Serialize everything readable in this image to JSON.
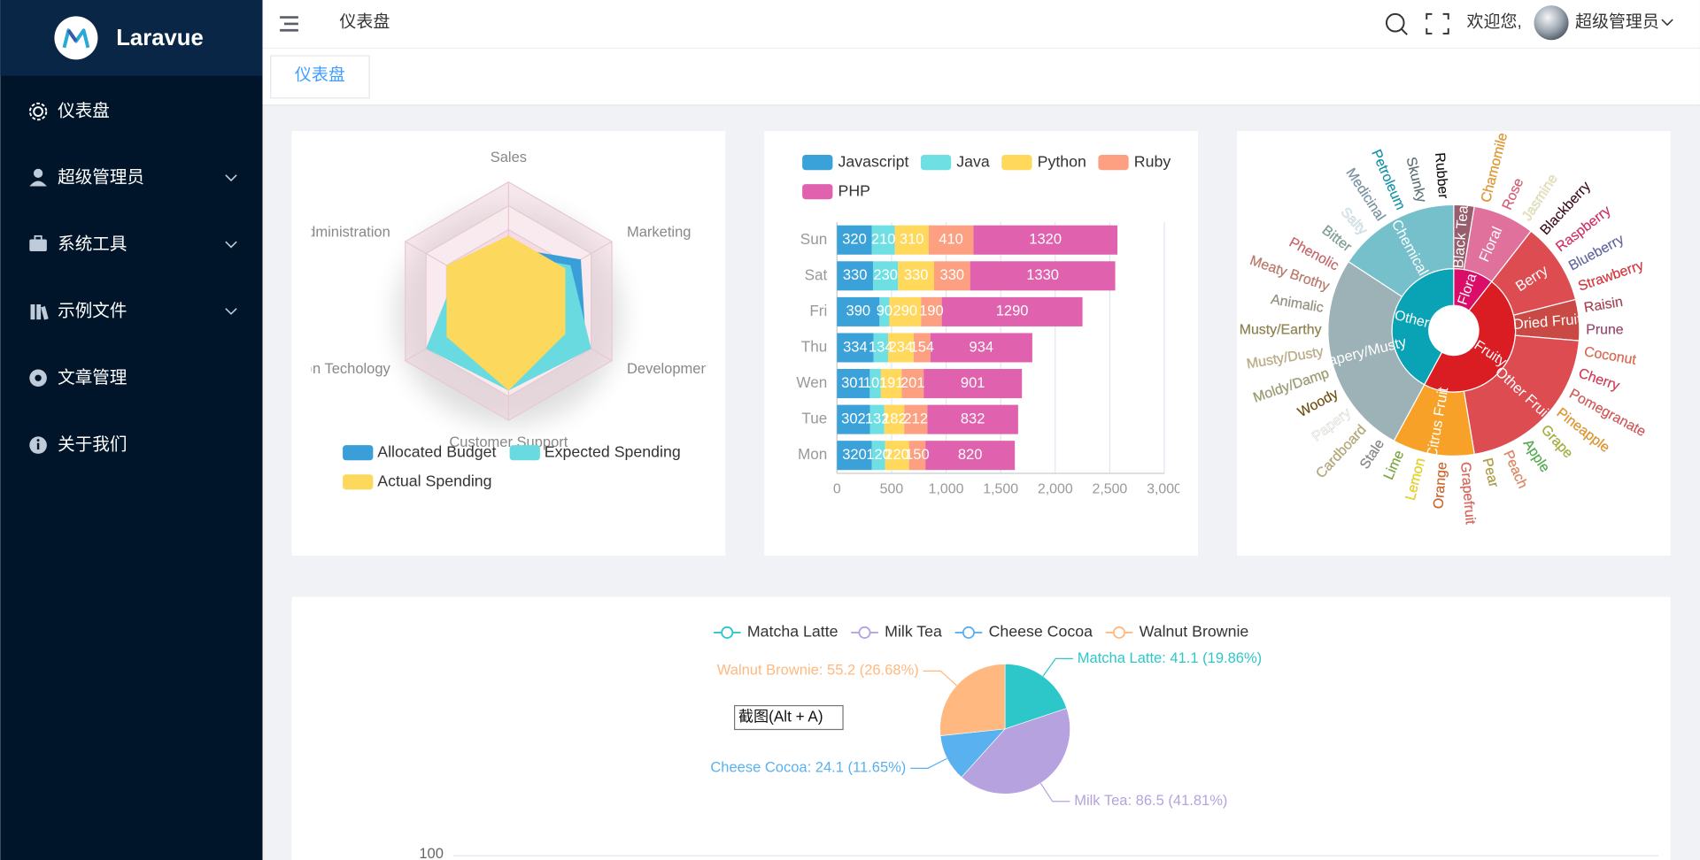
{
  "sidebar": {
    "logo": "Laravue",
    "menu": [
      {
        "label": "仪表盘"
      },
      {
        "label": "超级管理员",
        "submenu": true
      },
      {
        "label": "系统工具",
        "submenu": true
      },
      {
        "label": "示例文件",
        "submenu": true
      },
      {
        "label": "文章管理"
      },
      {
        "label": "关于我们"
      }
    ]
  },
  "header": {
    "breadcrumb": "仪表盘",
    "welcome": "欢迎您,",
    "user": "超级管理员"
  },
  "tabs": [
    "仪表盘"
  ],
  "tooltip": "截图(Alt + A)",
  "chart_data": [
    {
      "type": "radar",
      "indicators": [
        "Sales",
        "Administration",
        "Information Techology",
        "Customer Support",
        "Development",
        "Marketing"
      ],
      "rlim": [
        0,
        20000
      ],
      "series": [
        {
          "name": "Allocated Budget",
          "color": "#3a9fd8",
          "values": [
            9000,
            11000,
            12000,
            14000,
            15000,
            14000
          ]
        },
        {
          "name": "Expected Spending",
          "color": "#69dbe0",
          "values": [
            8000,
            10000,
            16000,
            15000,
            16000,
            12000
          ]
        },
        {
          "name": "Actual Spending",
          "color": "#fcd85c",
          "values": [
            11000,
            12000,
            12000,
            15000,
            11000,
            11000
          ]
        }
      ]
    },
    {
      "type": "bar",
      "orientation": "horizontal",
      "stacked": true,
      "categories": [
        "Mon",
        "Tue",
        "Wen",
        "Thu",
        "Fri",
        "Sat",
        "Sun"
      ],
      "series": [
        {
          "name": "Javascript",
          "color": "#3ba1d9",
          "values": [
            320,
            302,
            301,
            334,
            390,
            330,
            320
          ]
        },
        {
          "name": "Java",
          "color": "#6ee0e4",
          "values": [
            120,
            132,
            101,
            134,
            90,
            230,
            210
          ]
        },
        {
          "name": "Python",
          "color": "#ffd85c",
          "values": [
            220,
            182,
            191,
            234,
            290,
            330,
            310
          ]
        },
        {
          "name": "Ruby",
          "color": "#fd9f81",
          "values": [
            150,
            212,
            201,
            154,
            190,
            330,
            410
          ]
        },
        {
          "name": "PHP",
          "color": "#e062ae",
          "values": [
            820,
            832,
            901,
            934,
            1290,
            1330,
            1320
          ]
        }
      ],
      "xlim": [
        0,
        3000
      ],
      "xticks": [
        0,
        500,
        {
          "value": 1000,
          "label": "1,000"
        },
        {
          "value": 1500,
          "label": "1,500"
        },
        {
          "value": 2000,
          "label": "2,000"
        },
        {
          "value": 2500,
          "label": "2,500"
        },
        {
          "value": 3000,
          "label": "3,000"
        }
      ],
      "grid": true
    },
    {
      "type": "sunburst",
      "data": [
        {
          "name": "Flora",
          "color": "#da0d68",
          "children": [
            {
              "name": "Black Tea",
              "color": "#975e6d",
              "value": 1
            },
            {
              "name": "Floral",
              "color": "#e0719c",
              "children": [
                {
                  "name": "Chamomile",
                  "color": "#f99e1c",
                  "value": 1
                },
                {
                  "name": "Rose",
                  "color": "#ef5a78",
                  "value": 1
                },
                {
                  "name": "Jasmine",
                  "color": "#f7f1bd",
                  "value": 1
                }
              ]
            }
          ]
        },
        {
          "name": "Fruity",
          "color": "#da1d23",
          "children": [
            {
              "name": "Berry",
              "color": "#dd4c51",
              "children": [
                {
                  "name": "Blackberry",
                  "color": "#3e0317",
                  "value": 1
                },
                {
                  "name": "Raspberry",
                  "color": "#e62969",
                  "value": 1
                },
                {
                  "name": "Blueberry",
                  "color": "#6569b0",
                  "value": 1
                },
                {
                  "name": "Strawberry",
                  "color": "#ef2d36",
                  "value": 1
                }
              ]
            },
            {
              "name": "Dried Fruit",
              "color": "#c94a44",
              "children": [
                {
                  "name": "Raisin",
                  "color": "#b53b54",
                  "value": 1
                },
                {
                  "name": "Prune",
                  "color": "#a5446f",
                  "value": 1
                }
              ]
            },
            {
              "name": "Other Fruit",
              "color": "#dd4c51",
              "children": [
                {
                  "name": "Coconut",
                  "color": "#f2684b",
                  "value": 1
                },
                {
                  "name": "Cherry",
                  "color": "#e73451",
                  "value": 1
                },
                {
                  "name": "Pomegranate",
                  "color": "#e65656",
                  "value": 1
                },
                {
                  "name": "Pineapple",
                  "color": "#f89a1c",
                  "value": 1
                },
                {
                  "name": "Grape",
                  "color": "#aeb92c",
                  "value": 1
                },
                {
                  "name": "Apple",
                  "color": "#4eb849",
                  "value": 1
                },
                {
                  "name": "Peach",
                  "color": "#f68a5c",
                  "value": 1
                },
                {
                  "name": "Pear",
                  "color": "#baa635",
                  "value": 1
                }
              ]
            },
            {
              "name": "Citrus Fruit",
              "color": "#f7a128",
              "children": [
                {
                  "name": "Grapefruit",
                  "color": "#f26355",
                  "value": 1
                },
                {
                  "name": "Orange",
                  "color": "#e2631e",
                  "value": 1
                },
                {
                  "name": "Lemon",
                  "color": "#fde404",
                  "value": 1
                },
                {
                  "name": "Lime",
                  "color": "#7eb138",
                  "value": 1
                }
              ]
            }
          ]
        },
        {
          "name": "Other",
          "color": "#0aa3b5",
          "children": [
            {
              "name": "Papery/Musty",
              "color": "#9db2b7",
              "children": [
                {
                  "name": "Stale",
                  "color": "#8b8c90",
                  "value": 1
                },
                {
                  "name": "Cardboard",
                  "color": "#beb276",
                  "value": 1
                },
                {
                  "name": "Papery",
                  "color": "#fefef4",
                  "value": 1
                },
                {
                  "name": "Woody",
                  "color": "#744e03",
                  "value": 1
                },
                {
                  "name": "Moldy/Damp",
                  "color": "#a3a36f",
                  "value": 1
                },
                {
                  "name": "Musty/Dusty",
                  "color": "#c9b583",
                  "value": 1
                },
                {
                  "name": "Musty/Earthy",
                  "color": "#978847",
                  "value": 1
                },
                {
                  "name": "Animalic",
                  "color": "#9d977f",
                  "value": 1
                },
                {
                  "name": "Meaty Brothy",
                  "color": "#cc7b6a",
                  "value": 1
                },
                {
                  "name": "Phenolic",
                  "color": "#db646a",
                  "value": 1
                }
              ]
            },
            {
              "name": "Chemical",
              "color": "#76c0cb",
              "children": [
                {
                  "name": "Bitter",
                  "color": "#80a89d",
                  "value": 1
                },
                {
                  "name": "Salty",
                  "color": "#def2fd",
                  "value": 1
                },
                {
                  "name": "Medicinal",
                  "color": "#7a9bae",
                  "value": 1
                },
                {
                  "name": "Petroleum",
                  "color": "#039fb8",
                  "value": 1
                },
                {
                  "name": "Skunky",
                  "color": "#5e777b",
                  "value": 1
                },
                {
                  "name": "Rubber",
                  "color": "#120c0c",
                  "value": 1
                }
              ]
            }
          ]
        }
      ]
    },
    {
      "type": "pie",
      "categories": [
        "Matcha Latte",
        "Milk Tea",
        "Cheese Cocoa",
        "Walnut Brownie"
      ],
      "values": [
        41.1,
        86.5,
        24.1,
        55.2
      ],
      "value_labels": [
        "Matcha Latte: 41.1 (19.86%)",
        "Milk Tea: 86.5 (41.81%)",
        "Cheese Cocoa: 24.1 (11.65%)",
        "Walnut Brownie: 55.2 (26.68%)"
      ],
      "colors": [
        "#2ec7c9",
        "#b6a2de",
        "#5ab1ef",
        "#ffb980"
      ]
    },
    {
      "type": "line",
      "ylim": [
        0,
        100
      ],
      "yticks": [
        100
      ],
      "grid": true
    }
  ]
}
